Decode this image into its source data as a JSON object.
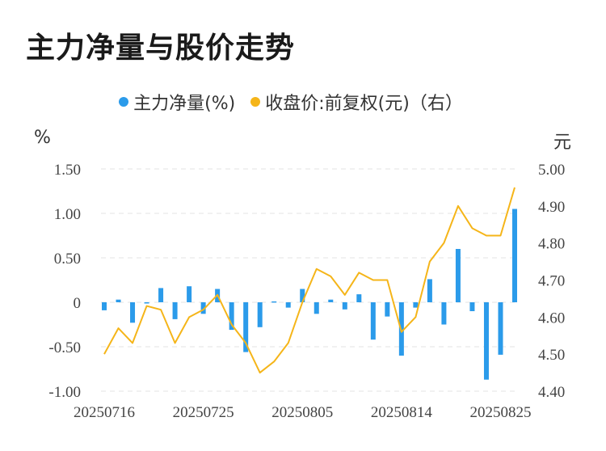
{
  "title": "主力净量与股价走势",
  "chart_data": {
    "type": "bar+line",
    "title": "主力净量与股价走势",
    "legend": [
      {
        "name": "主力净量(%)",
        "color": "#2b9bea"
      },
      {
        "name": "收盘价:前复权(元)（右）",
        "color": "#f5b519"
      }
    ],
    "left_unit": "%",
    "right_unit": "元",
    "y_left": {
      "min": -1.0,
      "max": 1.5,
      "ticks": [
        "1.50",
        "1.00",
        "0.50",
        "0",
        "-0.50",
        "-1.00"
      ],
      "tick_values": [
        1.5,
        1.0,
        0.5,
        0,
        -0.5,
        -1.0
      ]
    },
    "y_right": {
      "min": 4.4,
      "max": 5.0,
      "ticks": [
        "5.00",
        "4.90",
        "4.80",
        "4.70",
        "4.60",
        "4.50",
        "4.40"
      ],
      "tick_values": [
        5.0,
        4.9,
        4.8,
        4.7,
        4.6,
        4.5,
        4.4
      ]
    },
    "x_tick_labels": [
      {
        "label": "20250716",
        "index": 0
      },
      {
        "label": "20250725",
        "index": 7
      },
      {
        "label": "20250805",
        "index": 14
      },
      {
        "label": "20250814",
        "index": 21
      },
      {
        "label": "20250825",
        "index": 28
      }
    ],
    "series": [
      {
        "name": "主力净量(%)",
        "kind": "bar",
        "values": [
          -0.09,
          0.03,
          -0.23,
          -0.01,
          0.16,
          -0.19,
          0.18,
          -0.13,
          0.15,
          -0.31,
          -0.56,
          -0.28,
          0.01,
          -0.06,
          0.15,
          -0.13,
          0.03,
          -0.08,
          0.09,
          -0.42,
          -0.16,
          -0.6,
          -0.06,
          0.26,
          -0.25,
          0.6,
          -0.1,
          -0.87,
          -0.59,
          1.05
        ]
      },
      {
        "name": "收盘价:前复权(元)（右）",
        "kind": "line",
        "values": [
          4.5,
          4.57,
          4.53,
          4.63,
          4.62,
          4.53,
          4.6,
          4.62,
          4.66,
          4.58,
          4.53,
          4.45,
          4.48,
          4.53,
          4.64,
          4.73,
          4.71,
          4.66,
          4.72,
          4.7,
          4.7,
          4.56,
          4.6,
          4.75,
          4.8,
          4.9,
          4.84,
          4.82,
          4.82,
          4.95
        ]
      }
    ],
    "grid": true
  }
}
